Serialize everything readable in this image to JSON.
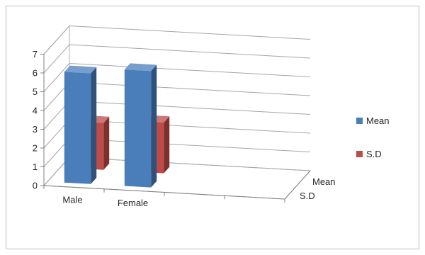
{
  "chart_data": {
    "type": "bar",
    "projection": "3d-column",
    "categories": [
      "Male",
      "Female"
    ],
    "depth_categories": [
      "Mean",
      "S.D"
    ],
    "series": [
      {
        "name": "Mean",
        "values": [
          5.9,
          6.2
        ],
        "color": "#4a7ebb"
      },
      {
        "name": "S.D",
        "values": [
          2.5,
          2.7
        ],
        "color": "#be4b48"
      }
    ],
    "ylim": [
      0,
      7
    ],
    "yticks": [
      "0",
      "1",
      "2",
      "3",
      "4",
      "5",
      "6",
      "7"
    ],
    "grid": true,
    "legend_position": "right",
    "title": "",
    "xlabel": "",
    "ylabel": ""
  }
}
